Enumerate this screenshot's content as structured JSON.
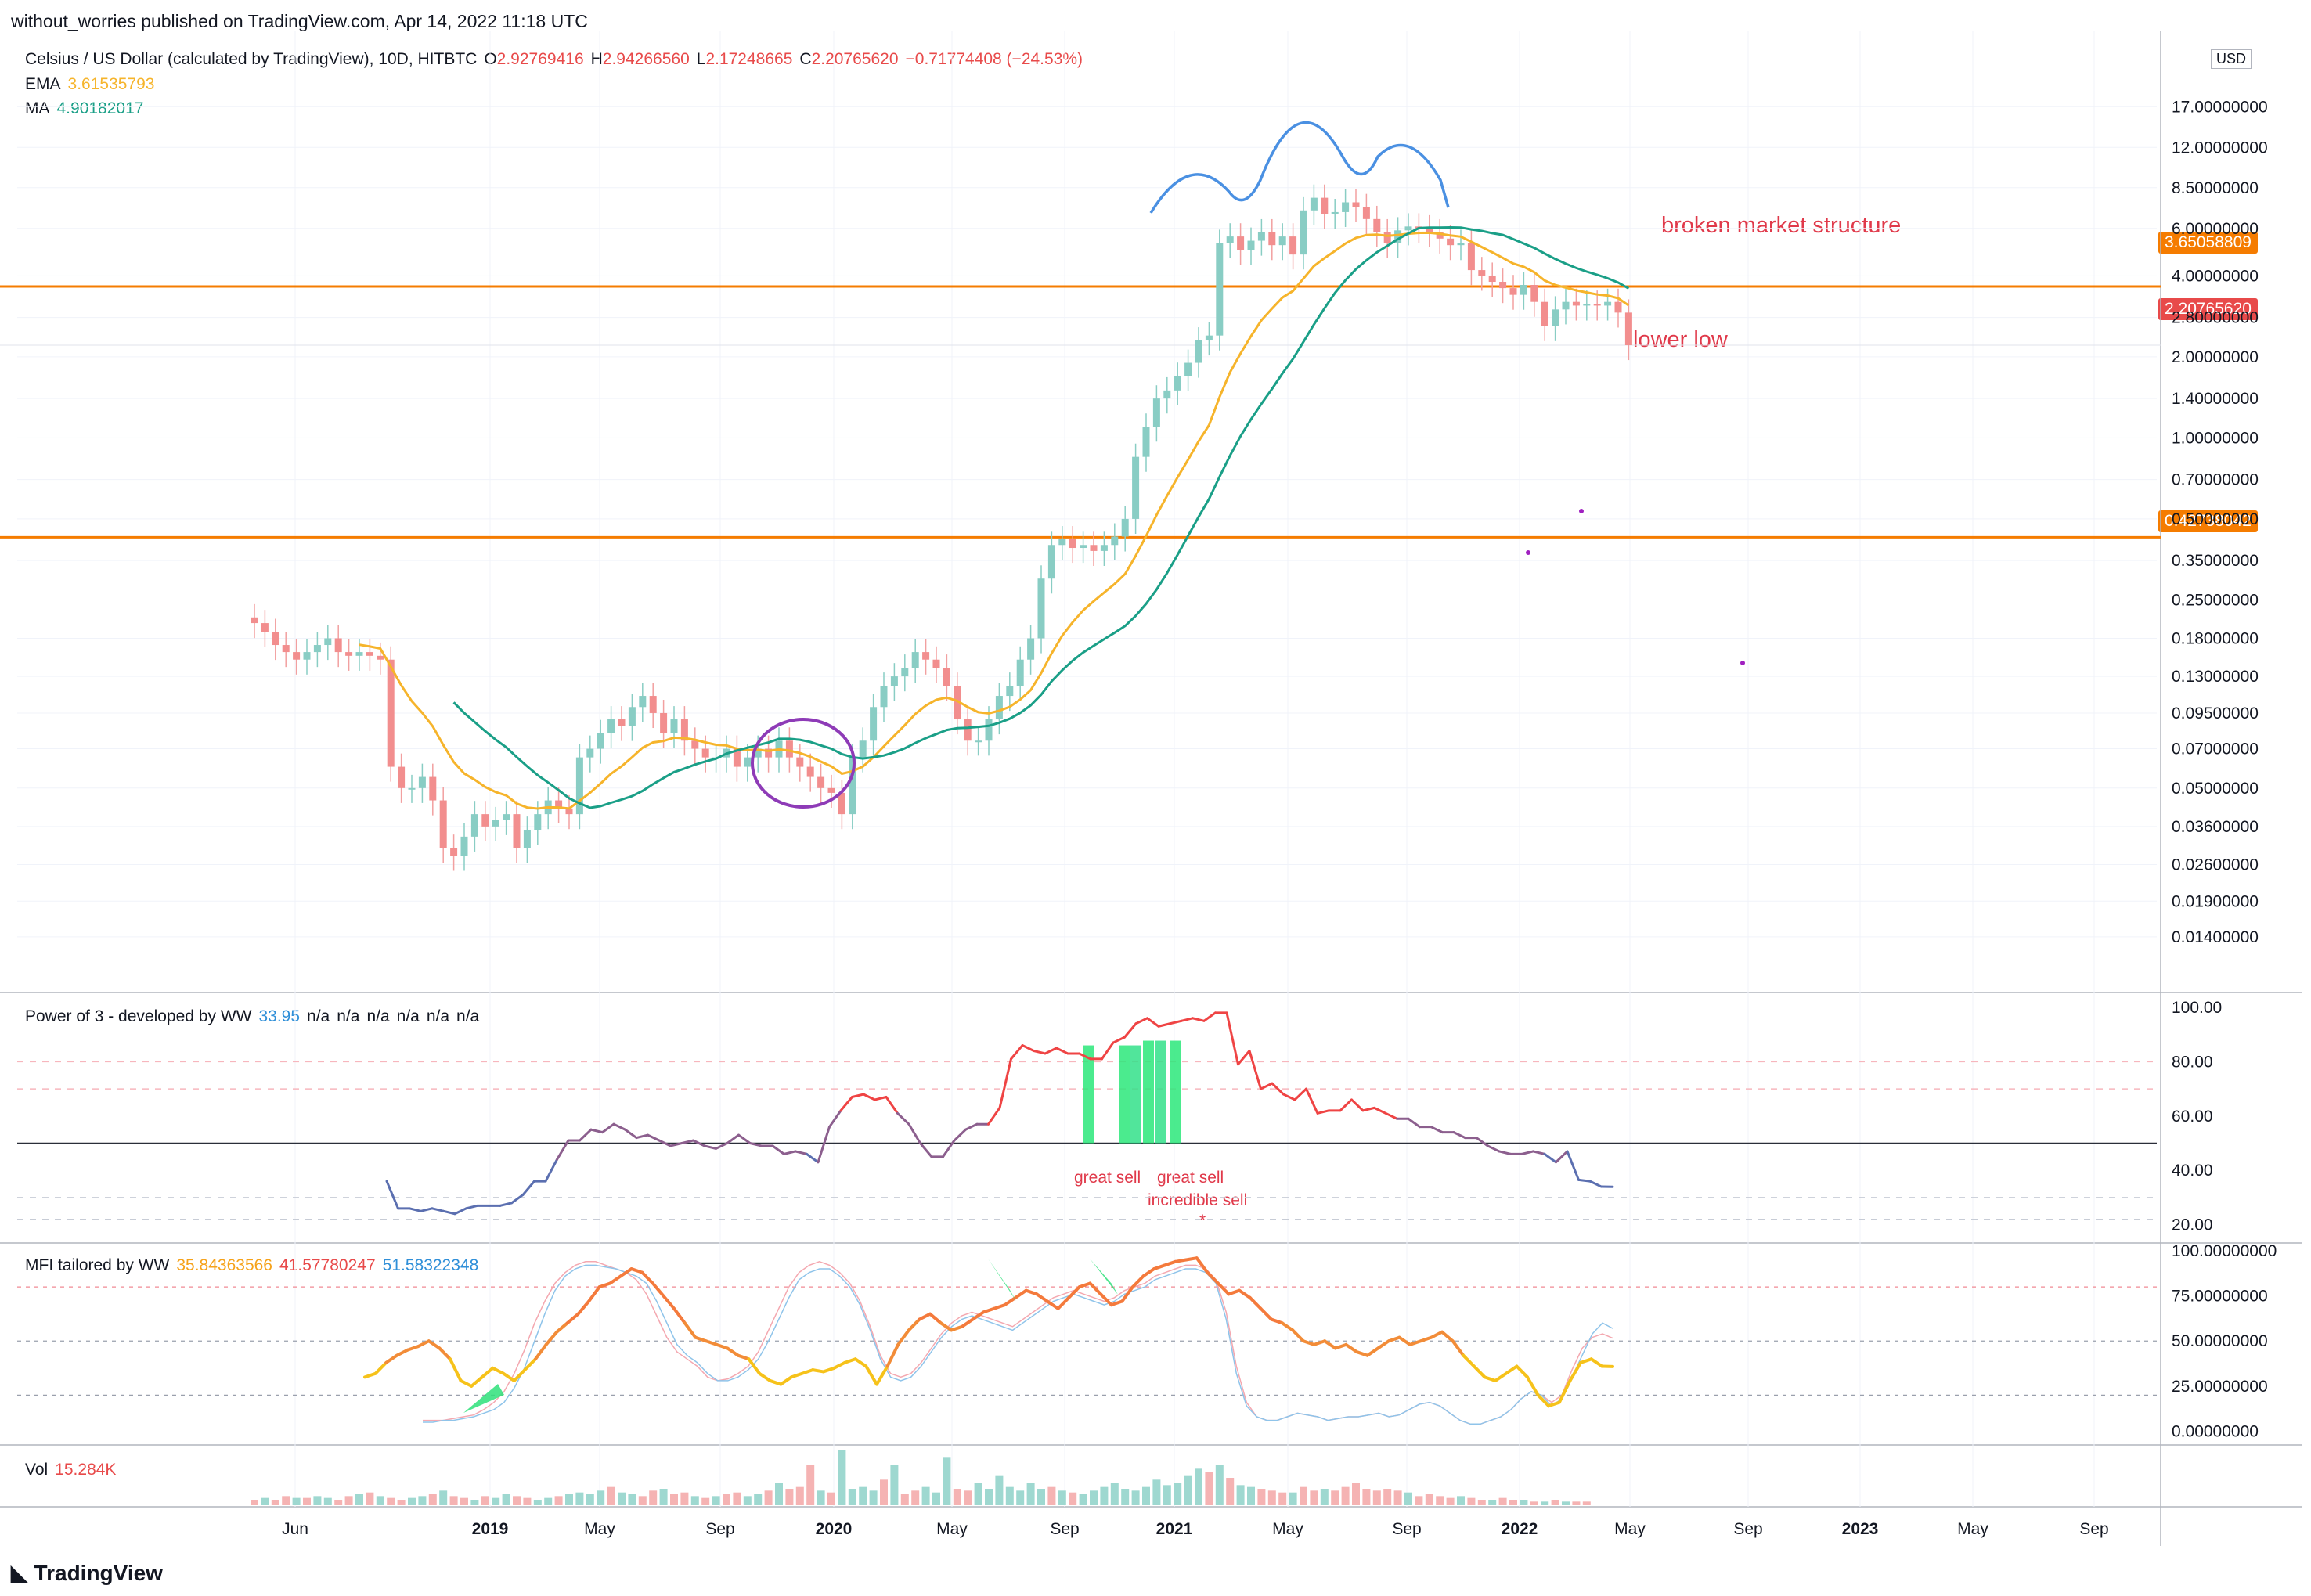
{
  "header": {
    "publisher_line": "without_worries published on TradingView.com, Apr 14, 2022 11:18 UTC"
  },
  "footer": {
    "brand": "TradingView"
  },
  "colors": {
    "up": "#89cdc4",
    "down": "#f2a0a0",
    "up_body": "#89cdc4",
    "down_body": "#f28e8e",
    "ema": "#f6b42b",
    "ma": "#1a9f87",
    "hline": "#f57c00",
    "annotation": "#e0394a",
    "hs_curve": "#4a90e2",
    "circle": "#8e3bb7",
    "close_tag": "#e84a4a",
    "hline_tag": "#f57c00",
    "power_line": "#ef4444",
    "power_line_low": "#5b6fb0",
    "mfi_main": "#f47a3c",
    "mfi_b": "#4aa3df",
    "grid": "#f0f3fa"
  },
  "main": {
    "symbol_line": {
      "name": "Celsius / US Dollar (calculated by TradingView), 10D, HITBTC",
      "o_label": "O",
      "o": "2.92769416",
      "h_label": "H",
      "h": "2.94266560",
      "l_label": "L",
      "l": "2.17248665",
      "c_label": "C",
      "c": "2.20765620",
      "chg": "−0.71774408 (−24.53%)"
    },
    "ema_label": "EMA",
    "ema_value": "3.61535793",
    "ma_label": "MA",
    "ma_value": "4.90182017",
    "axis_unit": "USD",
    "annotations": {
      "broken": "broken market structure",
      "lower_low": "lower low"
    },
    "price_tags": {
      "hline_upper": "3.65058809",
      "close": "2.20765620",
      "hline_lower": "0.42738042"
    }
  },
  "power_pane": {
    "title": "Power of 3 - developed by WW",
    "value": "33.95",
    "na": [
      "n/a",
      "n/a",
      "n/a",
      "n/a",
      "n/a",
      "n/a"
    ],
    "notes": {
      "great_sell_1": "great sell",
      "great_sell_2": "great sell",
      "incredible": "incredible sell",
      "star": "*"
    }
  },
  "mfi_pane": {
    "title": "MFI tailored by WW",
    "v1": "35.84363566",
    "v2": "41.57780247",
    "v3": "51.58322348"
  },
  "vol_pane": {
    "title": "Vol",
    "value": "15.284K"
  },
  "chart_data": [
    {
      "type": "candlestick",
      "title": "Celsius / US Dollar (calculated by TradingView), 10D, HITBTC",
      "y_scale": "log",
      "y_ticks": [
        "17.00000000",
        "12.00000000",
        "8.50000000",
        "6.00000000",
        "4.00000000",
        "2.80000000",
        "2.00000000",
        "1.40000000",
        "1.00000000",
        "0.70000000",
        "0.50000000",
        "0.35000000",
        "0.25000000",
        "0.18000000",
        "0.13000000",
        "0.09500000",
        "0.07000000",
        "0.05000000",
        "0.03600000",
        "0.02600000",
        "0.01900000",
        "0.01400000"
      ],
      "x_ticks": [
        "Jun",
        "2019",
        "May",
        "Sep",
        "2020",
        "May",
        "Sep",
        "2021",
        "May",
        "Sep",
        "2022",
        "May",
        "Sep",
        "2023",
        "May",
        "Sep"
      ],
      "closes": [
        0.205,
        0.19,
        0.17,
        0.16,
        0.15,
        0.16,
        0.17,
        0.18,
        0.16,
        0.155,
        0.16,
        0.155,
        0.15,
        0.06,
        0.05,
        0.05,
        0.055,
        0.045,
        0.03,
        0.028,
        0.033,
        0.04,
        0.036,
        0.038,
        0.04,
        0.03,
        0.035,
        0.04,
        0.045,
        0.042,
        0.04,
        0.065,
        0.07,
        0.08,
        0.09,
        0.085,
        0.1,
        0.11,
        0.095,
        0.08,
        0.09,
        0.075,
        0.07,
        0.065,
        0.065,
        0.07,
        0.06,
        0.065,
        0.07,
        0.065,
        0.075,
        0.065,
        0.06,
        0.055,
        0.05,
        0.048,
        0.04,
        0.065,
        0.075,
        0.1,
        0.12,
        0.13,
        0.14,
        0.16,
        0.15,
        0.14,
        0.12,
        0.09,
        0.075,
        0.075,
        0.09,
        0.11,
        0.12,
        0.15,
        0.18,
        0.3,
        0.4,
        0.42,
        0.39,
        0.4,
        0.38,
        0.4,
        0.43,
        0.5,
        0.85,
        1.1,
        1.4,
        1.5,
        1.7,
        1.9,
        2.3,
        2.4,
        5.3,
        5.6,
        5.0,
        5.4,
        5.8,
        5.2,
        5.6,
        4.8,
        7.0,
        7.8,
        6.8,
        6.9,
        7.5,
        7.2,
        6.5,
        5.8,
        5.3,
        5.9,
        6.1,
        6.0,
        5.8,
        5.5,
        5.2,
        5.3,
        4.2,
        4.0,
        3.8,
        3.6,
        3.4,
        3.7,
        3.2,
        2.6,
        3.0,
        3.2,
        3.1,
        3.15,
        3.1,
        3.2,
        2.92,
        2.21
      ],
      "horizontal_levels": [
        3.65058809,
        0.42738042
      ],
      "ema_value": 3.61535793,
      "ma_value": 4.90182017
    },
    {
      "type": "line",
      "title": "Power of 3 - developed by WW",
      "y_ticks": [
        "100.00",
        "80.00",
        "60.00",
        "40.00",
        "20.00"
      ],
      "ylim": [
        15,
        102
      ],
      "levels": [
        80,
        70,
        50,
        30,
        22
      ],
      "values": [
        36,
        26,
        26,
        25,
        26,
        25,
        24,
        26,
        27,
        27,
        27,
        28,
        31,
        36,
        36,
        44,
        51,
        51,
        55,
        54,
        57,
        55,
        52,
        53,
        51,
        49,
        50,
        51,
        49,
        48,
        50,
        53,
        50,
        49,
        49,
        46,
        47,
        46,
        43,
        56,
        62,
        67,
        68,
        66,
        67,
        61,
        57,
        50,
        45,
        45,
        51,
        55,
        57,
        57,
        63,
        81,
        86,
        84,
        83,
        85,
        83,
        83,
        81,
        81,
        87,
        89,
        94,
        96,
        93,
        94,
        95,
        96,
        95,
        98,
        98,
        79,
        84,
        70,
        72,
        68,
        66,
        70,
        61,
        62,
        62,
        66,
        62,
        63,
        61,
        59,
        59,
        56,
        56,
        54,
        54,
        52,
        52,
        49,
        47,
        46,
        46,
        47,
        46,
        43,
        47,
        36.5,
        36,
        34,
        33.95
      ],
      "sell_bars": [
        true,
        false,
        true,
        true,
        true,
        true,
        true
      ],
      "notes": [
        "great sell",
        "great sell",
        "incredible sell",
        "*"
      ]
    },
    {
      "type": "line",
      "title": "MFI tailored by WW",
      "y_ticks": [
        "100.00000000",
        "75.00000000",
        "50.00000000",
        "25.00000000",
        "0.00000000"
      ],
      "ylim": [
        -5,
        100
      ],
      "levels": [
        80,
        50,
        20
      ],
      "series": [
        {
          "values": [
            30,
            32,
            38,
            42,
            45,
            47,
            50,
            46,
            40,
            28,
            25,
            30,
            35,
            32,
            28,
            34,
            40,
            48,
            55,
            60,
            65,
            72,
            80,
            82,
            86,
            90,
            88,
            82,
            75,
            68,
            60,
            52,
            50,
            48,
            46,
            42,
            40,
            32,
            28,
            26,
            30,
            32,
            34,
            33,
            35,
            38,
            40,
            36,
            26,
            36,
            48,
            56,
            62,
            65,
            60,
            56,
            58,
            62,
            66,
            68,
            70,
            74,
            78,
            76,
            72,
            68,
            74,
            80,
            82,
            76,
            70,
            72,
            80,
            86,
            90,
            92,
            94,
            95,
            96,
            88,
            82,
            76,
            78,
            74,
            68,
            62,
            60,
            56,
            50,
            48,
            50,
            46,
            48,
            44,
            42,
            46,
            50,
            52,
            48,
            50,
            52,
            55,
            50,
            42,
            36,
            30,
            28,
            32,
            36,
            30,
            20,
            14,
            16,
            28,
            38,
            40,
            36,
            35.84
          ]
        },
        {
          "values": [
            5,
            5,
            6,
            6,
            7,
            8,
            10,
            12,
            16,
            24,
            35,
            50,
            65,
            78,
            86,
            90,
            92,
            92,
            91,
            90,
            88,
            86,
            82,
            72,
            60,
            48,
            42,
            38,
            32,
            28,
            28,
            30,
            34,
            40,
            50,
            62,
            74,
            84,
            88,
            90,
            90,
            86,
            80,
            70,
            56,
            40,
            30,
            28,
            30,
            36,
            44,
            52,
            58,
            62,
            64,
            62,
            60,
            58,
            56,
            60,
            64,
            68,
            72,
            74,
            76,
            74,
            72,
            70,
            72,
            76,
            78,
            80,
            84,
            86,
            88,
            90,
            90,
            88,
            82,
            62,
            32,
            14,
            8,
            6,
            6,
            8,
            10,
            9,
            8,
            6,
            7,
            8,
            8,
            9,
            10,
            8,
            9,
            12,
            15,
            16,
            14,
            10,
            6,
            4,
            4,
            6,
            8,
            12,
            18,
            22,
            20,
            14,
            18,
            30,
            42,
            54,
            60,
            57
          ]
        },
        {
          "values": [
            6,
            6,
            6,
            7,
            8,
            9,
            12,
            16,
            22,
            32,
            45,
            60,
            72,
            82,
            88,
            92,
            94,
            94,
            92,
            90,
            88,
            84,
            76,
            64,
            52,
            44,
            40,
            36,
            30,
            28,
            29,
            32,
            36,
            44,
            56,
            68,
            80,
            88,
            92,
            94,
            92,
            88,
            82,
            72,
            58,
            42,
            32,
            30,
            32,
            38,
            46,
            54,
            60,
            64,
            66,
            64,
            62,
            60,
            58,
            62,
            66,
            70,
            74,
            76,
            78,
            76,
            74,
            72,
            74,
            78,
            80,
            82,
            86,
            88,
            90,
            92,
            92,
            90,
            84,
            66,
            36,
            16,
            8,
            6,
            6,
            8,
            10,
            9,
            8,
            6,
            7,
            8,
            8,
            9,
            10,
            8,
            9,
            12,
            15,
            16,
            14,
            10,
            6,
            4,
            4,
            6,
            8,
            12,
            18,
            22,
            20,
            16,
            20,
            34,
            46,
            52,
            54,
            51.58
          ]
        }
      ]
    },
    {
      "type": "bar",
      "title": "Vol",
      "value_label": "15.284K",
      "values": [
        3,
        4,
        3,
        5,
        4,
        4,
        5,
        4,
        3,
        5,
        6,
        7,
        5,
        4,
        3,
        4,
        5,
        6,
        8,
        5,
        4,
        3,
        5,
        4,
        6,
        5,
        4,
        3,
        4,
        5,
        6,
        7,
        6,
        8,
        10,
        7,
        6,
        5,
        8,
        9,
        6,
        7,
        5,
        4,
        5,
        6,
        7,
        5,
        6,
        8,
        12,
        9,
        10,
        22,
        8,
        7,
        30,
        9,
        10,
        8,
        14,
        22,
        6,
        8,
        10,
        7,
        26,
        9,
        8,
        12,
        9,
        16,
        10,
        8,
        12,
        9,
        10,
        8,
        7,
        6,
        8,
        10,
        12,
        9,
        8,
        10,
        14,
        11,
        12,
        16,
        20,
        18,
        22,
        15,
        11,
        10,
        9,
        8,
        7,
        7,
        10,
        8,
        9,
        8,
        10,
        12,
        9,
        8,
        9,
        8,
        7,
        5,
        6,
        5,
        4,
        5,
        4,
        3,
        3,
        4,
        3,
        3,
        2,
        2,
        3,
        2,
        2,
        2
      ],
      "up": [
        false,
        true,
        false,
        false,
        true,
        false,
        true,
        true,
        false,
        false,
        true,
        false,
        true,
        false,
        false,
        true,
        true,
        false,
        true,
        false,
        false,
        true,
        false,
        true,
        true,
        false,
        false,
        true,
        true,
        false,
        true,
        true,
        true,
        true,
        false,
        true,
        true,
        false,
        false,
        true,
        false,
        false,
        true,
        false,
        true,
        false,
        false,
        true,
        true,
        false,
        true,
        false,
        false,
        false,
        true,
        false,
        true,
        true,
        true,
        true,
        false,
        true,
        false,
        false,
        true,
        true,
        true,
        false,
        false,
        true,
        true,
        true,
        true,
        true,
        true,
        true,
        false,
        true,
        false,
        true,
        true,
        true,
        true,
        true,
        true,
        true,
        true,
        true,
        true,
        true,
        true,
        false,
        true,
        false,
        true,
        true,
        false,
        false,
        false,
        true,
        false,
        false,
        true,
        false,
        false,
        false,
        false,
        false,
        false,
        false,
        true,
        false,
        false,
        false,
        false,
        true,
        false,
        false,
        true,
        false,
        false,
        true,
        false,
        true,
        false,
        true,
        false,
        false
      ]
    }
  ]
}
